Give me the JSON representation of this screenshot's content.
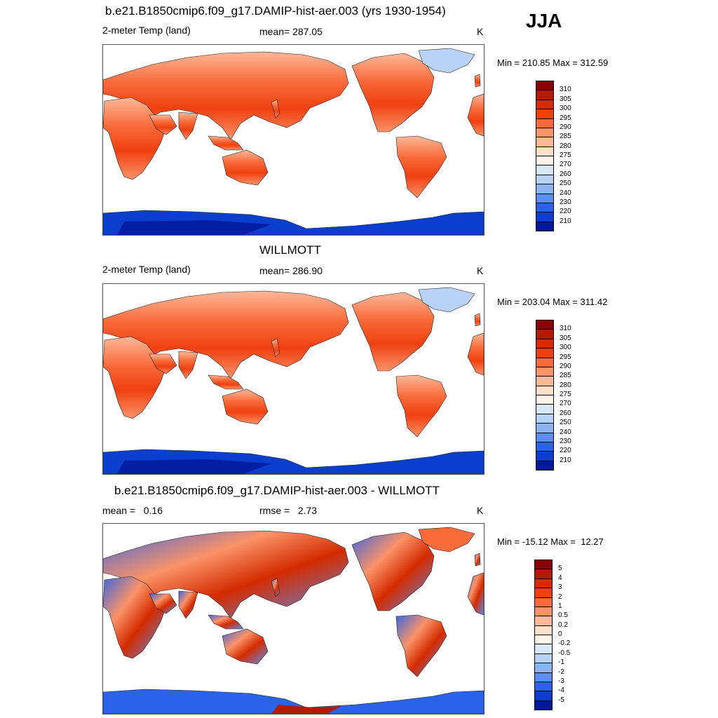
{
  "season": "JJA",
  "panels": [
    {
      "title": "b.e21.B1850cmip6.f09_g17.DAMIP-hist-aer.003 (yrs 1930-1954)",
      "left_label": "2-meter Temp (land)",
      "center_label": "mean= 287.05",
      "right_label": "K",
      "minmax": "Min = 210.85 Max = 312.59",
      "antarctic_scheme": "cold"
    },
    {
      "title": "WILLMOTT",
      "left_label": "2-meter Temp (land)",
      "center_label": "mean= 286.90",
      "right_label": "K",
      "minmax": "Min = 203.04 Max = 311.42",
      "antarctic_scheme": "cold"
    },
    {
      "title": "b.e21.B1850cmip6.f09_g17.DAMIP-hist-aer.003 - WILLMOTT",
      "left_label": "mean =   0.16",
      "center_label": "rmse =   2.73",
      "right_label": "K",
      "minmax": "Min = -15.12 Max =  12.27",
      "antarctic_scheme": "diff"
    }
  ],
  "colorbars": {
    "temperature": {
      "labels": [
        "310",
        "305",
        "300",
        "295",
        "290",
        "285",
        "280",
        "275",
        "270",
        "260",
        "250",
        "240",
        "230",
        "220",
        "210"
      ],
      "colors": [
        "#8b0000",
        "#b31a00",
        "#d42b00",
        "#f04010",
        "#f86a3a",
        "#fb9268",
        "#fcb898",
        "#fde0cc",
        "#fff3e8",
        "#d6e8fa",
        "#b8d2f8",
        "#8cb3f2",
        "#5a8ef0",
        "#2a62e8",
        "#0a3ecc",
        "#00189a"
      ]
    },
    "difference": {
      "labels": [
        "5",
        "4",
        "3",
        "2",
        "1",
        "0.5",
        "0.2",
        "0",
        "-0.2",
        "-0.5",
        "-1",
        "-2",
        "-3",
        "-4",
        "-5"
      ],
      "colors": [
        "#8b0000",
        "#b31a00",
        "#d42b00",
        "#f04010",
        "#f86a3a",
        "#fb9268",
        "#fcb898",
        "#fde0cc",
        "#fff3e8",
        "#d6e8fa",
        "#b8d2f8",
        "#8cb3f2",
        "#5a8ef0",
        "#2a62e8",
        "#0a3ecc",
        "#00189a"
      ]
    }
  }
}
